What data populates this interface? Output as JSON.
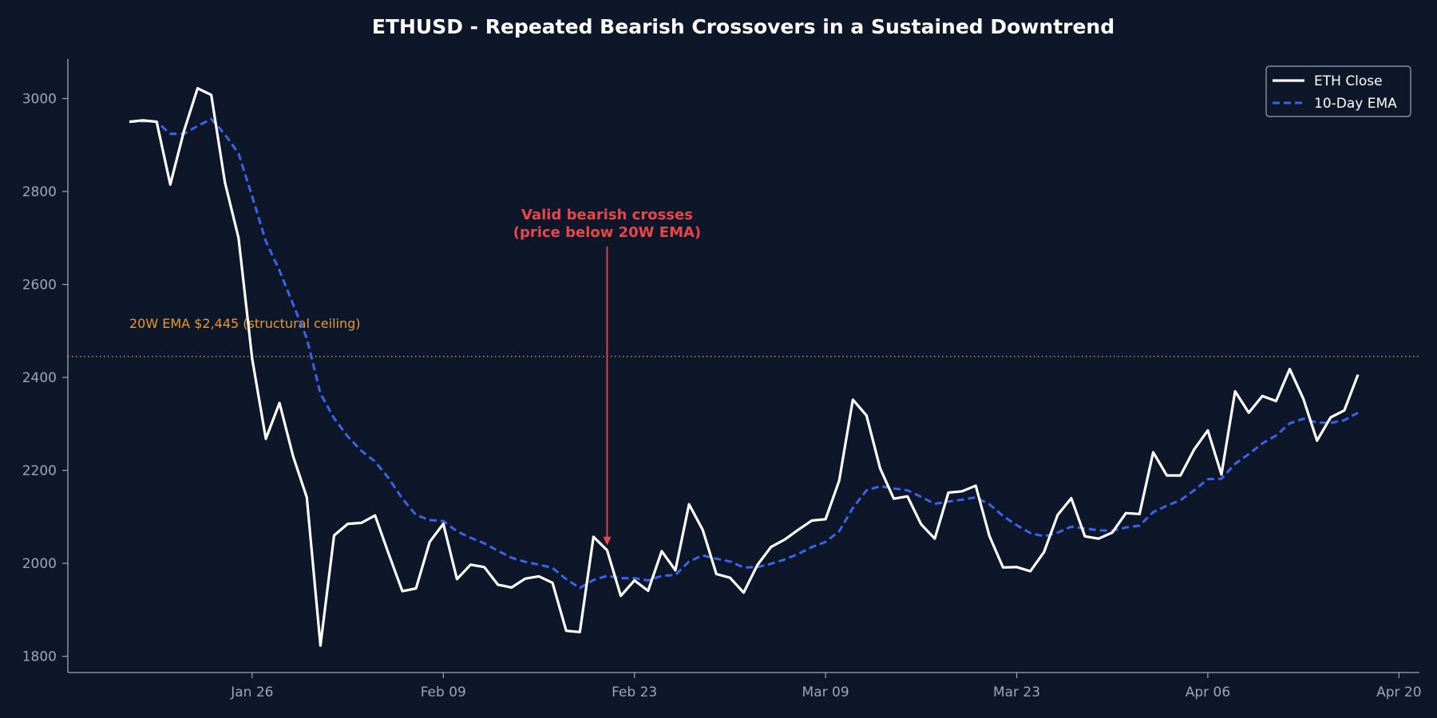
{
  "colors": {
    "background": "#0e1729",
    "axis": "#9aa6bb",
    "tick_text": "#9aa6bb",
    "title": "#ffffff",
    "close": "#ffffff",
    "ema10": "#3b64e8",
    "ema20w": "#e79a2e",
    "annotation": "#e8464b",
    "legend_bg": "#0e1729",
    "legend_border": "#9aa6bb",
    "legend_text": "#ffffff"
  },
  "chart_data": {
    "type": "line",
    "title": "ETHUSD - Repeated Bearish Crossovers in a Sustained Downtrend",
    "xlabel": "",
    "ylabel": "",
    "x_start": "Jan 17",
    "x_step_days": 1,
    "xlim_days": [
      -4.5,
      94.5
    ],
    "ylim": [
      1765,
      3085
    ],
    "y_ticks": [
      1800,
      2000,
      2200,
      2400,
      2600,
      2800,
      3000
    ],
    "x_ticks": [
      {
        "day": 9,
        "label": "Jan 26"
      },
      {
        "day": 23,
        "label": "Feb 09"
      },
      {
        "day": 37,
        "label": "Feb 23"
      },
      {
        "day": 51,
        "label": "Mar 09"
      },
      {
        "day": 65,
        "label": "Mar 23"
      },
      {
        "day": 79,
        "label": "Apr 06"
      },
      {
        "day": 93,
        "label": "Apr 20"
      }
    ],
    "legend": {
      "position": "top-right",
      "entries": [
        "ETH Close",
        "10-Day EMA"
      ]
    },
    "series": [
      {
        "name": "ETH Close",
        "style": "solid",
        "values": [
          2950,
          2953,
          2950,
          2815,
          2930,
          3022,
          3008,
          2820,
          2700,
          2440,
          2268,
          2345,
          2230,
          2142,
          1823,
          2060,
          2085,
          2087,
          2103,
          2020,
          1940,
          1946,
          2046,
          2085,
          1966,
          1997,
          1992,
          1954,
          1948,
          1967,
          1972,
          1958,
          1855,
          1852,
          2057,
          2028,
          1930,
          1963,
          1941,
          2026,
          1985,
          2127,
          2072,
          1977,
          1969,
          1937,
          1996,
          2035,
          2051,
          2072,
          2092,
          2095,
          2178,
          2352,
          2318,
          2204,
          2139,
          2144,
          2084,
          2053,
          2152,
          2155,
          2167,
          2059,
          1991,
          1992,
          1983,
          2024,
          2104,
          2140,
          2058,
          2053,
          2066,
          2108,
          2106,
          2239,
          2189,
          2189,
          2245,
          2286,
          2191,
          2370,
          2324,
          2360,
          2349,
          2418,
          2354,
          2264,
          2314,
          2329,
          2406
        ]
      },
      {
        "name": "10-Day EMA",
        "style": "dashed",
        "values": [
          2950,
          2951,
          2950,
          2924,
          2924,
          2941,
          2956,
          2923,
          2882,
          2789,
          2693,
          2630,
          2557,
          2484,
          2365,
          2312,
          2273,
          2242,
          2219,
          2183,
          2139,
          2104,
          2093,
          2091,
          2069,
          2055,
          2043,
          2027,
          2012,
          2003,
          1997,
          1990,
          1966,
          1947,
          1964,
          1973,
          1968,
          1968,
          1963,
          1973,
          1975,
          2004,
          2017,
          2010,
          2004,
          1991,
          1992,
          1999,
          2008,
          2020,
          2035,
          2046,
          2069,
          2119,
          2157,
          2166,
          2161,
          2157,
          2143,
          2128,
          2133,
          2137,
          2142,
          2127,
          2102,
          2082,
          2065,
          2058,
          2066,
          2079,
          2075,
          2071,
          2070,
          2077,
          2081,
          2110,
          2124,
          2136,
          2157,
          2181,
          2182,
          2214,
          2235,
          2258,
          2275,
          2301,
          2311,
          2303,
          2302,
          2308,
          2324
        ]
      }
    ],
    "reference_line": {
      "value": 2445,
      "label": "20W EMA $2,445 (structural ceiling)"
    },
    "annotation": {
      "line1": "Valid bearish crosses",
      "line2": "(price below 20W EMA)",
      "arrow_day": 35,
      "arrow_value": 2028
    }
  }
}
